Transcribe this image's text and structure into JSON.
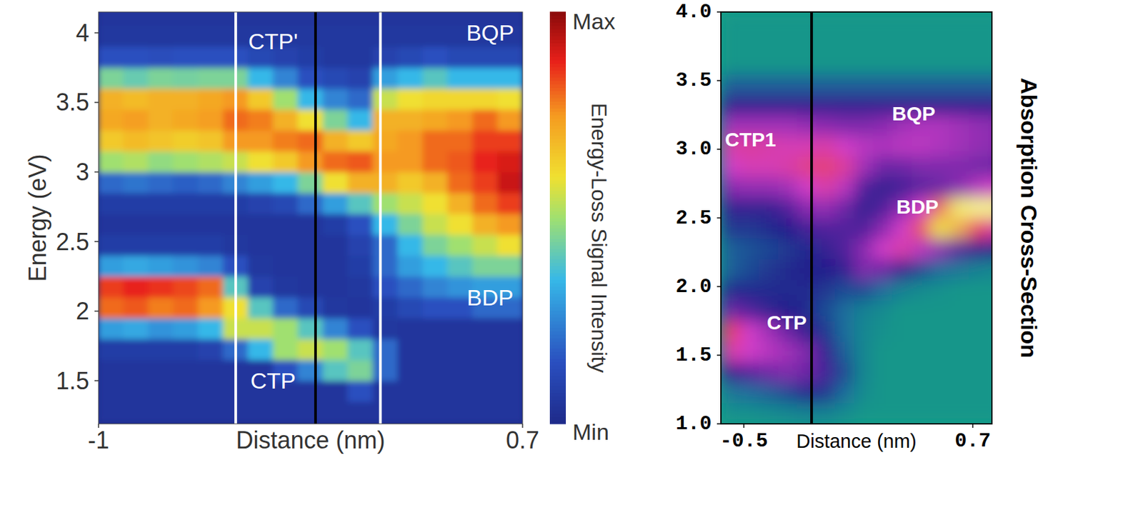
{
  "chart_data": [
    {
      "type": "heatmap",
      "xlabel": "Distance (nm)",
      "ylabel": "Energy (eV)",
      "xlim": [
        -1,
        0.7
      ],
      "ylim": [
        1.19,
        4.15
      ],
      "xticks": [
        -1,
        0.7
      ],
      "yticks": [
        1.5,
        2,
        2.5,
        3,
        3.5,
        4
      ],
      "x": [
        -0.95,
        -0.85,
        -0.75,
        -0.65,
        -0.55,
        -0.45,
        -0.35,
        -0.25,
        -0.15,
        -0.05,
        0.05,
        0.15,
        0.25,
        0.35,
        0.45,
        0.55,
        0.65
      ],
      "y": [
        1.275,
        1.425,
        1.575,
        1.725,
        1.875,
        2.025,
        2.175,
        2.325,
        2.475,
        2.625,
        2.775,
        2.925,
        3.075,
        3.225,
        3.375,
        3.525,
        3.675,
        3.825,
        3.975,
        4.125
      ],
      "z": [
        [
          0.05,
          0.05,
          0.05,
          0.05,
          0.05,
          0.05,
          0.05,
          0.05,
          0.05,
          0.05,
          0.05,
          0.05,
          0.05,
          0.05,
          0.05,
          0.05,
          0.05
        ],
        [
          0.05,
          0.05,
          0.05,
          0.05,
          0.05,
          0.05,
          0.05,
          0.05,
          0.05,
          0.05,
          0.15,
          0.05,
          0.05,
          0.05,
          0.05,
          0.05,
          0.05
        ],
        [
          0.05,
          0.05,
          0.05,
          0.05,
          0.05,
          0.05,
          0.05,
          0.15,
          0.25,
          0.4,
          0.45,
          0.2,
          0.05,
          0.05,
          0.05,
          0.05,
          0.05
        ],
        [
          0.08,
          0.08,
          0.08,
          0.08,
          0.1,
          0.2,
          0.35,
          0.5,
          0.55,
          0.5,
          0.4,
          0.2,
          0.05,
          0.05,
          0.05,
          0.05,
          0.05
        ],
        [
          0.3,
          0.32,
          0.28,
          0.3,
          0.35,
          0.55,
          0.55,
          0.5,
          0.4,
          0.25,
          0.15,
          0.06,
          0.05,
          0.05,
          0.05,
          0.05,
          0.05
        ],
        [
          0.8,
          0.82,
          0.78,
          0.8,
          0.75,
          0.6,
          0.4,
          0.2,
          0.12,
          0.06,
          0.05,
          0.08,
          0.12,
          0.15,
          0.15,
          0.2,
          0.2
        ],
        [
          0.85,
          0.88,
          0.86,
          0.84,
          0.8,
          0.4,
          0.1,
          0.06,
          0.05,
          0.05,
          0.06,
          0.15,
          0.2,
          0.25,
          0.28,
          0.3,
          0.3
        ],
        [
          0.3,
          0.32,
          0.3,
          0.28,
          0.25,
          0.15,
          0.06,
          0.05,
          0.05,
          0.05,
          0.08,
          0.2,
          0.3,
          0.35,
          0.4,
          0.45,
          0.45
        ],
        [
          0.08,
          0.08,
          0.08,
          0.08,
          0.08,
          0.06,
          0.05,
          0.05,
          0.05,
          0.05,
          0.1,
          0.2,
          0.35,
          0.45,
          0.5,
          0.55,
          0.6
        ],
        [
          0.05,
          0.05,
          0.05,
          0.05,
          0.05,
          0.05,
          0.05,
          0.05,
          0.05,
          0.08,
          0.15,
          0.35,
          0.45,
          0.55,
          0.6,
          0.7,
          0.75
        ],
        [
          0.08,
          0.08,
          0.08,
          0.08,
          0.08,
          0.08,
          0.1,
          0.12,
          0.2,
          0.3,
          0.4,
          0.5,
          0.55,
          0.6,
          0.7,
          0.8,
          0.85
        ],
        [
          0.2,
          0.22,
          0.2,
          0.18,
          0.2,
          0.25,
          0.3,
          0.35,
          0.45,
          0.6,
          0.7,
          0.7,
          0.65,
          0.7,
          0.8,
          0.85,
          0.92
        ],
        [
          0.5,
          0.52,
          0.48,
          0.5,
          0.52,
          0.55,
          0.6,
          0.65,
          0.75,
          0.8,
          0.82,
          0.75,
          0.75,
          0.8,
          0.82,
          0.88,
          0.9
        ],
        [
          0.65,
          0.68,
          0.66,
          0.64,
          0.66,
          0.75,
          0.75,
          0.78,
          0.8,
          0.7,
          0.65,
          0.72,
          0.75,
          0.8,
          0.8,
          0.85,
          0.85
        ],
        [
          0.72,
          0.74,
          0.7,
          0.72,
          0.74,
          0.8,
          0.78,
          0.7,
          0.6,
          0.45,
          0.35,
          0.7,
          0.7,
          0.72,
          0.75,
          0.8,
          0.75
        ],
        [
          0.7,
          0.68,
          0.7,
          0.7,
          0.72,
          0.75,
          0.65,
          0.5,
          0.35,
          0.25,
          0.2,
          0.55,
          0.6,
          0.62,
          0.62,
          0.62,
          0.6
        ],
        [
          0.45,
          0.42,
          0.45,
          0.44,
          0.45,
          0.45,
          0.35,
          0.25,
          0.15,
          0.12,
          0.1,
          0.3,
          0.35,
          0.4,
          0.35,
          0.35,
          0.35
        ],
        [
          0.15,
          0.15,
          0.14,
          0.15,
          0.15,
          0.15,
          0.12,
          0.1,
          0.08,
          0.06,
          0.06,
          0.1,
          0.12,
          0.15,
          0.12,
          0.12,
          0.12
        ],
        [
          0.06,
          0.06,
          0.06,
          0.06,
          0.06,
          0.06,
          0.06,
          0.06,
          0.06,
          0.06,
          0.06,
          0.06,
          0.06,
          0.06,
          0.06,
          0.06,
          0.06
        ],
        [
          0.05,
          0.05,
          0.05,
          0.05,
          0.05,
          0.05,
          0.05,
          0.05,
          0.05,
          0.05,
          0.05,
          0.05,
          0.05,
          0.05,
          0.05,
          0.05,
          0.05
        ]
      ],
      "colorbar": {
        "label": "Energy-Loss Signal Intensity",
        "range": [
          0,
          1
        ],
        "ticks": [
          {
            "value": 1,
            "label": "Max"
          },
          {
            "value": 0,
            "label": "Min"
          }
        ]
      },
      "reference_lines": [
        {
          "x": -0.45,
          "color": "#ffffff"
        },
        {
          "x": -0.13,
          "color": "#000000"
        },
        {
          "x": 0.13,
          "color": "#ffffff"
        }
      ],
      "annotations": [
        {
          "text": "CTP'",
          "x": -0.3,
          "y": 3.94,
          "color": "#ffffff"
        },
        {
          "text": "BQP",
          "x": 0.57,
          "y": 4.0,
          "color": "#ffffff"
        },
        {
          "text": "BDP",
          "x": 0.57,
          "y": 2.1,
          "color": "#ffffff"
        },
        {
          "text": "CTP",
          "x": -0.3,
          "y": 1.5,
          "color": "#ffffff"
        }
      ]
    },
    {
      "type": "heatmap",
      "xlabel": "Distance (nm)",
      "z_label": "Absorption Cross-Section",
      "xlim": [
        -0.62,
        0.8
      ],
      "ylim": [
        1,
        4
      ],
      "xticks": [
        -0.5,
        0.7
      ],
      "yticks": [
        {
          "value": 1,
          "label": "1.0"
        },
        1.5,
        {
          "value": 2,
          "label": "2.0"
        },
        2.5,
        {
          "value": 3,
          "label": "3.0"
        },
        3.5,
        {
          "value": 4,
          "label": "4.0"
        }
      ],
      "x": [
        -0.57,
        -0.47,
        -0.37,
        -0.27,
        -0.17,
        -0.07,
        0.03,
        0.13,
        0.23,
        0.33,
        0.43,
        0.53,
        0.63,
        0.73,
        0.83
      ],
      "y": [
        1.075,
        1.225,
        1.375,
        1.525,
        1.675,
        1.825,
        1.975,
        2.125,
        2.275,
        2.425,
        2.575,
        2.725,
        2.875,
        3.025,
        3.175,
        3.325,
        3.475,
        3.625,
        3.775,
        3.925
      ],
      "z": [
        [
          0.03,
          0.03,
          0.04,
          0.05,
          0.06,
          0.06,
          0.04,
          0.02,
          0.02,
          0.02,
          0.02,
          0.02,
          0.02,
          0.02,
          0.02
        ],
        [
          0.08,
          0.1,
          0.12,
          0.15,
          0.2,
          0.18,
          0.1,
          0.04,
          0.02,
          0.02,
          0.02,
          0.02,
          0.02,
          0.02,
          0.02
        ],
        [
          0.25,
          0.3,
          0.35,
          0.38,
          0.35,
          0.28,
          0.15,
          0.05,
          0.02,
          0.02,
          0.02,
          0.02,
          0.02,
          0.02,
          0.02
        ],
        [
          0.6,
          0.55,
          0.5,
          0.45,
          0.38,
          0.25,
          0.12,
          0.05,
          0.02,
          0.02,
          0.02,
          0.02,
          0.02,
          0.02,
          0.02
        ],
        [
          0.7,
          0.55,
          0.45,
          0.35,
          0.25,
          0.18,
          0.1,
          0.05,
          0.03,
          0.02,
          0.02,
          0.02,
          0.02,
          0.02,
          0.02
        ],
        [
          0.35,
          0.3,
          0.25,
          0.22,
          0.2,
          0.15,
          0.1,
          0.06,
          0.04,
          0.02,
          0.02,
          0.02,
          0.02,
          0.02,
          0.02
        ],
        [
          0.2,
          0.2,
          0.2,
          0.2,
          0.2,
          0.18,
          0.15,
          0.15,
          0.1,
          0.06,
          0.04,
          0.03,
          0.02,
          0.02,
          0.02
        ],
        [
          0.12,
          0.15,
          0.18,
          0.2,
          0.22,
          0.22,
          0.25,
          0.38,
          0.35,
          0.25,
          0.15,
          0.1,
          0.08,
          0.06,
          0.05
        ],
        [
          0.12,
          0.14,
          0.16,
          0.18,
          0.2,
          0.25,
          0.3,
          0.4,
          0.55,
          0.6,
          0.5,
          0.4,
          0.3,
          0.25,
          0.2
        ],
        [
          0.18,
          0.18,
          0.2,
          0.22,
          0.28,
          0.3,
          0.3,
          0.3,
          0.4,
          0.55,
          0.72,
          0.85,
          0.8,
          0.7,
          0.6
        ],
        [
          0.25,
          0.25,
          0.25,
          0.3,
          0.4,
          0.42,
          0.35,
          0.25,
          0.3,
          0.4,
          0.55,
          0.75,
          0.92,
          0.97,
          0.95
        ],
        [
          0.4,
          0.42,
          0.42,
          0.45,
          0.55,
          0.6,
          0.5,
          0.3,
          0.25,
          0.28,
          0.32,
          0.35,
          0.4,
          0.5,
          0.55
        ],
        [
          0.55,
          0.58,
          0.58,
          0.6,
          0.65,
          0.68,
          0.62,
          0.45,
          0.35,
          0.35,
          0.38,
          0.38,
          0.38,
          0.36,
          0.35
        ],
        [
          0.6,
          0.62,
          0.6,
          0.58,
          0.58,
          0.6,
          0.55,
          0.5,
          0.48,
          0.5,
          0.5,
          0.48,
          0.45,
          0.42,
          0.4
        ],
        [
          0.45,
          0.45,
          0.45,
          0.45,
          0.42,
          0.4,
          0.38,
          0.38,
          0.4,
          0.45,
          0.48,
          0.48,
          0.45,
          0.42,
          0.4
        ],
        [
          0.25,
          0.25,
          0.25,
          0.25,
          0.25,
          0.25,
          0.25,
          0.25,
          0.25,
          0.25,
          0.25,
          0.25,
          0.25,
          0.25,
          0.25
        ],
        [
          0.12,
          0.12,
          0.12,
          0.12,
          0.12,
          0.12,
          0.12,
          0.12,
          0.12,
          0.12,
          0.12,
          0.12,
          0.12,
          0.12,
          0.12
        ],
        [
          0.02,
          0.02,
          0.02,
          0.02,
          0.02,
          0.02,
          0.02,
          0.02,
          0.02,
          0.02,
          0.02,
          0.02,
          0.02,
          0.02,
          0.02
        ],
        [
          0.02,
          0.02,
          0.02,
          0.02,
          0.02,
          0.02,
          0.02,
          0.02,
          0.02,
          0.02,
          0.02,
          0.02,
          0.02,
          0.02,
          0.02
        ],
        [
          0.02,
          0.02,
          0.02,
          0.02,
          0.02,
          0.02,
          0.02,
          0.02,
          0.02,
          0.02,
          0.02,
          0.02,
          0.02,
          0.02,
          0.02
        ]
      ],
      "reference_lines": [
        {
          "x": -0.145,
          "color": "#000000"
        }
      ],
      "annotations": [
        {
          "text": "CTP1",
          "x": -0.465,
          "y": 3.07,
          "color": "#ffffff"
        },
        {
          "text": "BQP",
          "x": 0.39,
          "y": 3.26,
          "color": "#ffffff"
        },
        {
          "text": "BDP",
          "x": 0.41,
          "y": 2.58,
          "color": "#ffffff"
        },
        {
          "text": "CTP",
          "x": -0.275,
          "y": 1.74,
          "color": "#ffffff"
        }
      ]
    }
  ]
}
